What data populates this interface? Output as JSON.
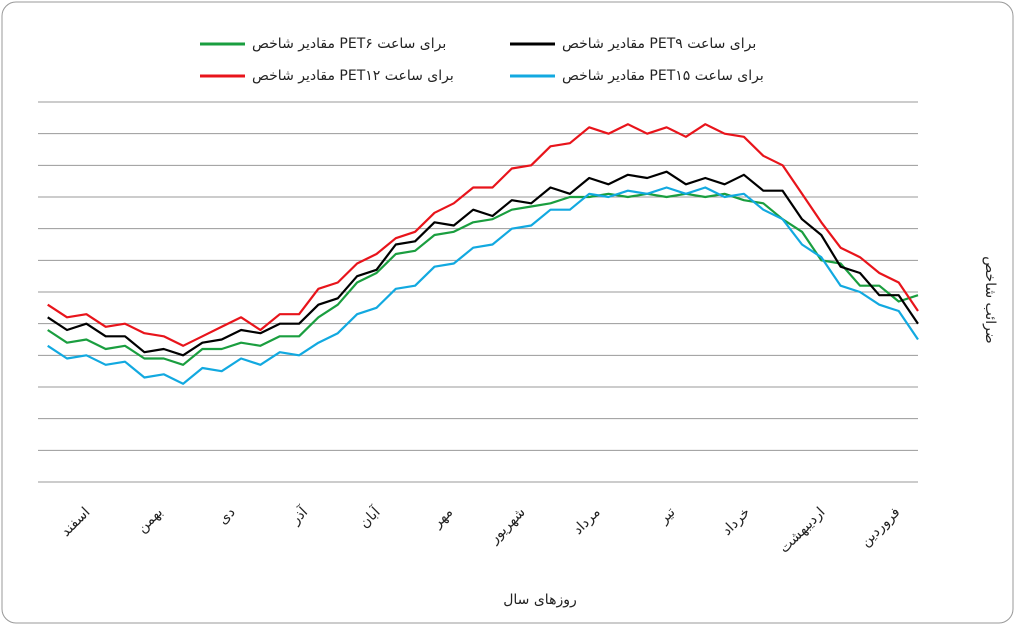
{
  "chart_data": {
    "type": "line",
    "x_label": "روزهای سال",
    "y_label": "ضرائب شاخص",
    "xlim": [
      365,
      1
    ],
    "ylim": [
      0,
      12
    ],
    "yticks": [
      0,
      1,
      2,
      3,
      4,
      5,
      6,
      7,
      8,
      9,
      10,
      11,
      12
    ],
    "grid": true,
    "xticks": [
      {
        "value": 16,
        "label": "فروردین"
      },
      {
        "value": 47,
        "label": "اردیبهشت"
      },
      {
        "value": 78,
        "label": "خرداد"
      },
      {
        "value": 109,
        "label": "تیر"
      },
      {
        "value": 140,
        "label": "مرداد"
      },
      {
        "value": 171,
        "label": "شهریور"
      },
      {
        "value": 201,
        "label": "مهر"
      },
      {
        "value": 231,
        "label": "آبان"
      },
      {
        "value": 261,
        "label": "آذر"
      },
      {
        "value": 291,
        "label": "دی"
      },
      {
        "value": 321,
        "label": "بهمن"
      },
      {
        "value": 351,
        "label": "اسفند"
      }
    ],
    "legend": "top",
    "x": [
      1,
      9,
      17,
      25,
      33,
      41,
      49,
      57,
      65,
      73,
      81,
      89,
      97,
      105,
      113,
      121,
      129,
      137,
      145,
      153,
      161,
      169,
      177,
      185,
      193,
      201,
      209,
      217,
      225,
      233,
      241,
      249,
      257,
      265,
      273,
      281,
      289,
      297,
      305,
      313,
      321,
      329,
      337,
      345,
      353,
      361
    ],
    "series": [
      {
        "name": "مقادیر شاخص PETبرای ساعت ۶",
        "color": "#1a9e3f",
        "values": [
          5.9,
          5.7,
          6.2,
          6.2,
          6.9,
          7.0,
          7.9,
          8.3,
          8.8,
          8.9,
          9.1,
          9.0,
          9.1,
          9.0,
          9.1,
          9.0,
          9.1,
          9.0,
          9.0,
          8.8,
          8.7,
          8.6,
          8.3,
          8.2,
          7.9,
          7.8,
          7.3,
          7.2,
          6.6,
          6.3,
          5.6,
          5.2,
          4.6,
          4.6,
          4.3,
          4.4,
          4.2,
          4.2,
          3.7,
          3.9,
          3.9,
          4.3,
          4.2,
          4.5,
          4.4,
          4.8
        ]
      },
      {
        "name": "مقادیر شاخص PETبرای ساعت ۹",
        "color": "#000000",
        "values": [
          5.0,
          5.9,
          5.9,
          6.6,
          6.8,
          7.8,
          8.3,
          9.2,
          9.2,
          9.7,
          9.4,
          9.6,
          9.4,
          9.8,
          9.6,
          9.7,
          9.4,
          9.6,
          9.1,
          9.3,
          8.8,
          8.9,
          8.4,
          8.6,
          8.1,
          8.2,
          7.6,
          7.5,
          6.7,
          6.5,
          5.8,
          5.6,
          5.0,
          5.0,
          4.7,
          4.8,
          4.5,
          4.4,
          4.0,
          4.2,
          4.1,
          4.6,
          4.6,
          5.0,
          4.8,
          5.2
        ]
      },
      {
        "name": "مقادیر شاخص PETبرای ساعت ۱۲",
        "color": "#e8141b",
        "values": [
          5.4,
          6.3,
          6.6,
          7.1,
          7.4,
          8.2,
          9.1,
          10.0,
          10.3,
          10.9,
          11.0,
          11.3,
          10.9,
          11.2,
          11.0,
          11.3,
          11.0,
          11.2,
          10.7,
          10.6,
          10.0,
          9.9,
          9.3,
          9.3,
          8.8,
          8.5,
          7.9,
          7.7,
          7.2,
          6.9,
          6.3,
          6.1,
          5.3,
          5.3,
          4.8,
          5.2,
          4.9,
          4.6,
          4.3,
          4.6,
          4.7,
          5.0,
          4.9,
          5.3,
          5.2,
          5.6
        ]
      },
      {
        "name": "مقادیر شاخص PETبرای ساعت ۱۵",
        "color": "#12a9e0",
        "values": [
          4.5,
          5.4,
          5.6,
          6.0,
          6.2,
          7.1,
          7.5,
          8.3,
          8.6,
          9.1,
          9.0,
          9.3,
          9.1,
          9.3,
          9.1,
          9.2,
          9.0,
          9.1,
          8.6,
          8.6,
          8.1,
          8.0,
          7.5,
          7.4,
          6.9,
          6.8,
          6.2,
          6.1,
          5.5,
          5.3,
          4.7,
          4.4,
          4.0,
          4.1,
          3.7,
          3.9,
          3.5,
          3.6,
          3.1,
          3.4,
          3.3,
          3.8,
          3.7,
          4.0,
          3.9,
          4.3
        ]
      }
    ]
  }
}
